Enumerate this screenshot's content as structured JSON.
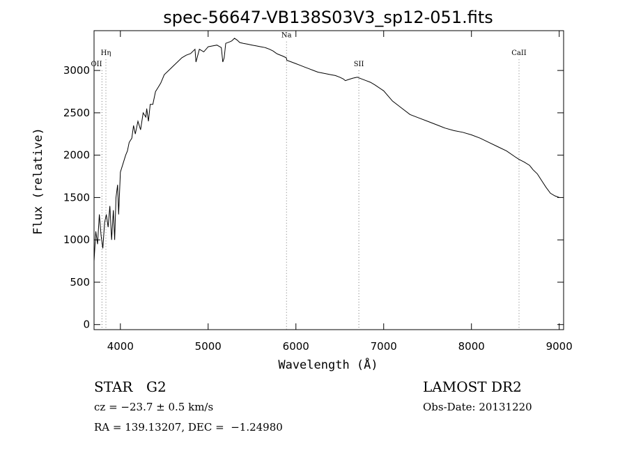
{
  "chart_data": {
    "type": "line",
    "title": "spec-56647-VB138S03V3_sp12-051.fits",
    "xlabel": "Wavelength (Å)",
    "ylabel": "Flux (relative)",
    "xlim": [
      3700,
      9050
    ],
    "ylim": [
      -60,
      3470
    ],
    "xticks": [
      4000,
      5000,
      6000,
      7000,
      8000,
      9000
    ],
    "yticks": [
      0,
      500,
      1000,
      1500,
      2000,
      2500,
      3000
    ],
    "grid": false,
    "series": [
      {
        "x": [
          3700,
          3720,
          3740,
          3760,
          3780,
          3800,
          3820,
          3840,
          3860,
          3880,
          3900,
          3920,
          3935,
          3950,
          3968,
          3980,
          4000,
          4030,
          4060,
          4080,
          4100,
          4130,
          4150,
          4170,
          4200,
          4230,
          4260,
          4290,
          4300,
          4320,
          4340,
          4370,
          4400,
          4430,
          4460,
          4500,
          4550,
          4600,
          4650,
          4700,
          4750,
          4800,
          4850,
          4861,
          4900,
          4950,
          5000,
          5050,
          5100,
          5150,
          5167,
          5183,
          5200,
          5250,
          5270,
          5300,
          5330,
          5360,
          5400,
          5450,
          5500,
          5550,
          5600,
          5650,
          5700,
          5740,
          5780,
          5800,
          5850,
          5890,
          5896,
          5950,
          6000,
          6050,
          6100,
          6150,
          6200,
          6250,
          6300,
          6350,
          6400,
          6450,
          6500,
          6540,
          6563,
          6590,
          6650,
          6700,
          6750,
          6800,
          6850,
          6900,
          7000,
          7100,
          7200,
          7300,
          7400,
          7500,
          7600,
          7700,
          7800,
          7900,
          8000,
          8100,
          8200,
          8300,
          8400,
          8498,
          8542,
          8600,
          8662,
          8700,
          8750,
          8800,
          8850,
          8900,
          8950,
          9000
        ],
        "y": [
          750,
          1100,
          950,
          1300,
          1050,
          900,
          1200,
          1300,
          1150,
          1400,
          1000,
          1350,
          1000,
          1500,
          1650,
          1300,
          1800,
          1900,
          2000,
          2050,
          2150,
          2200,
          2350,
          2250,
          2400,
          2300,
          2500,
          2450,
          2550,
          2400,
          2600,
          2600,
          2750,
          2800,
          2850,
          2950,
          3000,
          3050,
          3100,
          3150,
          3180,
          3200,
          3250,
          3100,
          3250,
          3220,
          3280,
          3290,
          3300,
          3270,
          3100,
          3150,
          3320,
          3340,
          3350,
          3380,
          3360,
          3330,
          3320,
          3310,
          3300,
          3290,
          3280,
          3270,
          3250,
          3230,
          3200,
          3190,
          3170,
          3150,
          3120,
          3100,
          3080,
          3060,
          3040,
          3020,
          3000,
          2980,
          2970,
          2960,
          2950,
          2940,
          2920,
          2900,
          2880,
          2890,
          2910,
          2920,
          2900,
          2880,
          2860,
          2830,
          2760,
          2640,
          2560,
          2480,
          2440,
          2400,
          2360,
          2320,
          2290,
          2270,
          2240,
          2200,
          2150,
          2100,
          2050,
          1980,
          1950,
          1920,
          1880,
          1830,
          1780,
          1700,
          1620,
          1550,
          1520,
          1500
        ]
      }
    ],
    "spectral_lines": [
      {
        "label": "OII",
        "x": 3728,
        "tick_x": 3790,
        "label_y": 3050
      },
      {
        "label": "Hη",
        "x": 3835,
        "tick_x": 3835,
        "label_y": 3180
      },
      {
        "label": "Na",
        "x": 5893,
        "tick_x": 5893,
        "label_y": 3390
      },
      {
        "label": "SII",
        "x": 6717,
        "tick_x": 6717,
        "label_y": 3050
      },
      {
        "label": "CaII",
        "x": 8542,
        "tick_x": 8542,
        "label_y": 3180
      }
    ]
  },
  "info": {
    "object_type": "STAR",
    "subclass": "G2",
    "survey": "LAMOST DR2",
    "cz": "cz = −23.7 ± 0.5 km/s",
    "obs_date": "Obs-Date: 20131220",
    "coords": "RA = 139.13207, DEC =  −1.24980"
  }
}
